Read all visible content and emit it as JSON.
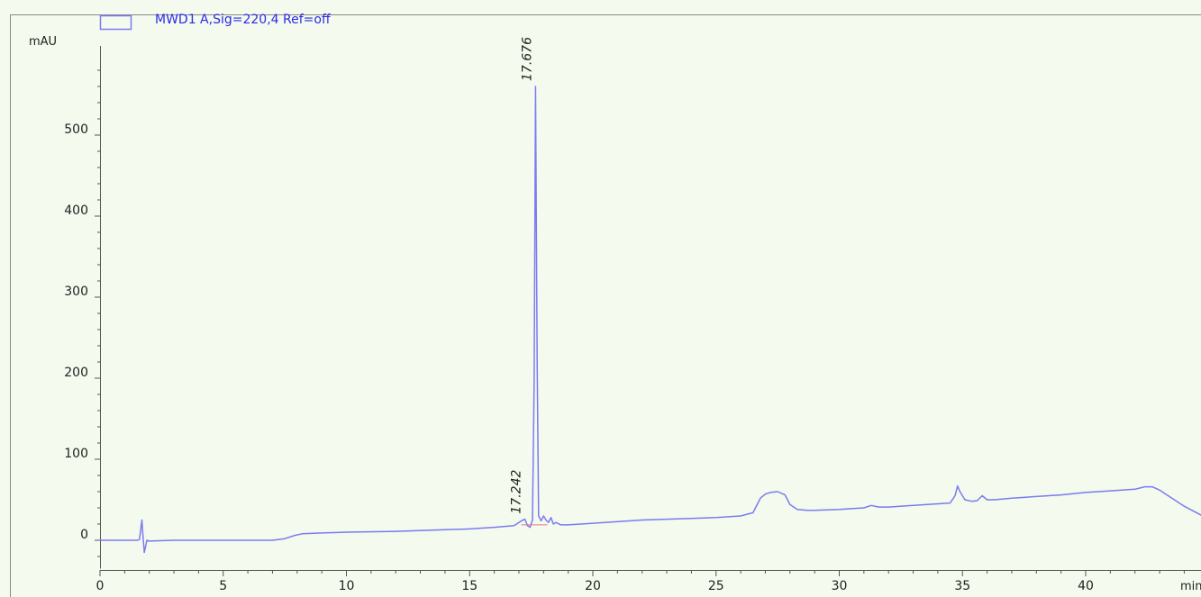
{
  "chart_data": {
    "type": "line",
    "title": "",
    "xlabel": "min",
    "ylabel": "mAU",
    "xlim": [
      0,
      45
    ],
    "ylim": [
      -35,
      610
    ],
    "x_major_ticks": [
      0,
      5,
      10,
      15,
      20,
      25,
      30,
      35,
      40
    ],
    "y_major_ticks": [
      0,
      100,
      200,
      300,
      400,
      500
    ],
    "grid": false,
    "legend": {
      "position": "top-left"
    },
    "series": [
      {
        "name": "MWD1 A,Sig=220,4 Ref=off",
        "color": "#7b7bf0",
        "x": [
          0,
          1.5,
          1.6,
          1.7,
          1.75,
          1.8,
          1.9,
          2.0,
          3,
          5,
          7,
          7.5,
          7.9,
          8.2,
          9,
          10,
          12,
          14,
          15,
          16,
          16.8,
          17.0,
          17.1,
          17.242,
          17.35,
          17.45,
          17.55,
          17.62,
          17.676,
          17.74,
          17.8,
          17.9,
          18.0,
          18.1,
          18.2,
          18.3,
          18.4,
          18.5,
          18.7,
          19,
          20,
          22,
          24,
          25,
          26,
          26.5,
          26.8,
          27.0,
          27.2,
          27.5,
          27.8,
          28.0,
          28.3,
          28.7,
          29,
          30,
          31,
          31.3,
          31.6,
          32,
          33,
          34,
          34.5,
          34.7,
          34.8,
          34.9,
          35.1,
          35.4,
          35.6,
          35.8,
          36.0,
          36.3,
          37,
          38,
          39,
          40,
          41,
          42,
          42.4,
          42.7,
          43,
          43.5,
          44,
          44.5,
          45
        ],
        "y": [
          0,
          0,
          1,
          25,
          2,
          -15,
          0,
          -1,
          0,
          0,
          0,
          2,
          6,
          8,
          9,
          10,
          11,
          13,
          14,
          16,
          18,
          22,
          24,
          26,
          18,
          16,
          25,
          200,
          560,
          220,
          30,
          24,
          30,
          25,
          22,
          28,
          20,
          22,
          19,
          19,
          21,
          25,
          27,
          28,
          30,
          34,
          52,
          57,
          59,
          60,
          56,
          44,
          38,
          37,
          37,
          38,
          40,
          43,
          41,
          41,
          43,
          45,
          46,
          55,
          67,
          60,
          50,
          48,
          49,
          55,
          50,
          50,
          52,
          54,
          56,
          59,
          61,
          63,
          66,
          66,
          62,
          52,
          42,
          34,
          26
        ]
      }
    ],
    "annotations": [
      {
        "x": 17.676,
        "y": 560,
        "text": "17.676"
      },
      {
        "x": 17.242,
        "y": 26,
        "text": "17.242"
      }
    ]
  }
}
